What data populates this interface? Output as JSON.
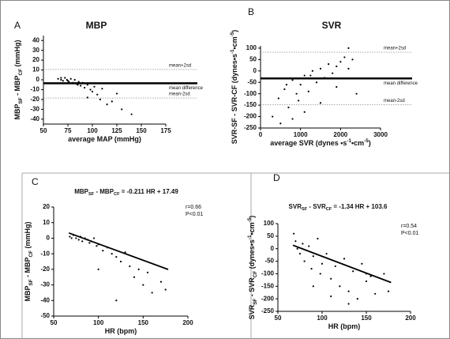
{
  "chart_data": [
    {
      "type": "scatter",
      "panel_label": "A",
      "title": [
        {
          "text": "MBP"
        }
      ],
      "xlabel": [
        {
          "text": "average MAP (mmHg)"
        }
      ],
      "ylabel": [
        {
          "text": "MBP"
        },
        {
          "text": "SF",
          "shift": "sub"
        },
        {
          "text": " - MBP"
        },
        {
          "text": "CF",
          "shift": "sub"
        },
        {
          "text": " (mmHg)"
        }
      ],
      "xlim": [
        50,
        175
      ],
      "xticks": [
        50,
        75,
        100,
        125,
        150,
        175
      ],
      "ylim": [
        -45,
        45
      ],
      "yticks": [
        -40,
        -30,
        -20,
        -10,
        0,
        10,
        20,
        30,
        40
      ],
      "color": "#000000",
      "x": [
        65,
        68,
        70,
        72,
        74,
        76,
        78,
        80,
        82,
        84,
        86,
        88,
        90,
        92,
        95,
        98,
        100,
        102,
        105,
        108,
        110,
        115,
        120,
        125,
        130,
        140,
        68,
        75,
        85,
        95
      ],
      "values": [
        1,
        0,
        -1,
        2,
        0,
        -2,
        1,
        -3,
        0,
        -4,
        -2,
        -6,
        -3,
        -8,
        -5,
        -10,
        -12,
        -7,
        -15,
        -20,
        -9,
        -25,
        -22,
        -14,
        -30,
        -35,
        2,
        -1,
        -5,
        -18
      ],
      "hlines": [
        {
          "value": 10.5,
          "label": "mean+2sd",
          "style": "dashed"
        },
        {
          "value": -3.5,
          "label": "mean difference",
          "style": "bold"
        },
        {
          "value": -18.5,
          "label": "mean-2sd",
          "style": "dashed"
        }
      ]
    },
    {
      "type": "scatter",
      "panel_label": "B",
      "title": [
        {
          "text": "SVR"
        }
      ],
      "xlabel": [
        {
          "text": "average SVR (dynes •s"
        },
        {
          "text": "-1",
          "shift": "sup"
        },
        {
          "text": "•cm"
        },
        {
          "text": "-5",
          "shift": "sup"
        },
        {
          "text": ")"
        }
      ],
      "ylabel": [
        {
          "text": "SVR-SF - SVR-CF (dynes•s"
        },
        {
          "text": "-1",
          "shift": "sup"
        },
        {
          "text": "•cm"
        },
        {
          "text": "-5",
          "shift": "sup"
        },
        {
          "text": ")"
        }
      ],
      "xlim": [
        0,
        3000
      ],
      "xticks": [
        0,
        1000,
        2000,
        3000
      ],
      "ylim": [
        -250,
        110
      ],
      "yticks": [
        -250,
        -200,
        -150,
        -100,
        -50,
        0,
        50,
        100
      ],
      "color": "#000000",
      "x": [
        300,
        450,
        600,
        700,
        800,
        900,
        1000,
        1100,
        1200,
        1300,
        1400,
        1500,
        1600,
        1700,
        1800,
        1900,
        2000,
        2100,
        2200,
        2300,
        2400,
        500,
        800,
        1100,
        1500,
        1900,
        2200,
        650,
        950,
        1250
      ],
      "values": [
        -200,
        -120,
        -80,
        -160,
        -40,
        -100,
        -60,
        -20,
        -90,
        0,
        -50,
        10,
        -30,
        30,
        -10,
        20,
        40,
        60,
        100,
        50,
        -100,
        -230,
        -210,
        -180,
        -140,
        -70,
        10,
        -60,
        -130,
        -20
      ],
      "hlines": [
        {
          "value": 82,
          "label": "mean+2sd",
          "style": "dashed"
        },
        {
          "value": -33,
          "label": "mean difference",
          "style": "bold"
        },
        {
          "value": -148,
          "label": "mean-2sd",
          "style": "dashed"
        }
      ]
    },
    {
      "type": "scatter",
      "panel_label": "C",
      "title": [
        {
          "text": "MBP"
        },
        {
          "text": "SF",
          "shift": "sub"
        },
        {
          "text": " - MBP"
        },
        {
          "text": "CF",
          "shift": "sub"
        },
        {
          "text": " = -0.211 HR + 17.49"
        }
      ],
      "xlabel": [
        {
          "text": "HR (bpm)"
        }
      ],
      "ylabel": [
        {
          "text": "MBP"
        },
        {
          "text": "SF",
          "shift": "sub"
        },
        {
          "text": " - MBP"
        },
        {
          "text": "CF",
          "shift": "sub"
        },
        {
          "text": " (mmHg)"
        }
      ],
      "annotations": [
        "r=0.66",
        "P<0.01"
      ],
      "xlim": [
        50,
        200
      ],
      "xticks": [
        50,
        100,
        150,
        200
      ],
      "ylim": [
        -50,
        20
      ],
      "yticks": [
        -50,
        -40,
        -30,
        -20,
        -10,
        0,
        10,
        20
      ],
      "color": "#000000",
      "x": [
        68,
        70,
        72,
        75,
        78,
        80,
        82,
        85,
        88,
        90,
        92,
        95,
        98,
        100,
        105,
        110,
        115,
        120,
        125,
        130,
        135,
        140,
        145,
        150,
        155,
        160,
        170,
        175,
        100,
        120
      ],
      "values": [
        1,
        0,
        2,
        0,
        -1,
        1,
        -2,
        0,
        -1,
        -3,
        -2,
        0,
        -5,
        -4,
        -8,
        -6,
        -10,
        -12,
        -15,
        -9,
        -18,
        -25,
        -20,
        -30,
        -22,
        -35,
        -28,
        -33,
        -20,
        -40
      ],
      "fit": {
        "x": [
          67,
          178
        ],
        "values": [
          3.35,
          -20.07
        ]
      }
    },
    {
      "type": "scatter",
      "panel_label": "D",
      "title": [
        {
          "text": "SVR"
        },
        {
          "text": "SF",
          "shift": "sub"
        },
        {
          "text": " - SVR"
        },
        {
          "text": "CF",
          "shift": "sub"
        },
        {
          "text": " = -1.34 HR + 103.6"
        }
      ],
      "xlabel": [
        {
          "text": "HR (bpm)"
        }
      ],
      "ylabel": [
        {
          "text": "SVR"
        },
        {
          "text": "SF",
          "shift": "sub"
        },
        {
          "text": " - SVR"
        },
        {
          "text": "CF",
          "shift": "sub"
        },
        {
          "text": " (dynes•s"
        },
        {
          "text": "-1",
          "shift": "sup"
        },
        {
          "text": "•cm"
        },
        {
          "text": "-5",
          "shift": "sup"
        },
        {
          "text": ")"
        }
      ],
      "annotations": [
        "r=0.54",
        "P<0.01"
      ],
      "xlim": [
        50,
        200
      ],
      "xticks": [
        50,
        100,
        150,
        200
      ],
      "ylim": [
        -250,
        100
      ],
      "yticks": [
        -250,
        -200,
        -150,
        -100,
        -50,
        0,
        50,
        100
      ],
      "color": "#000000",
      "x": [
        68,
        70,
        72,
        75,
        78,
        80,
        85,
        88,
        90,
        95,
        98,
        100,
        105,
        110,
        115,
        120,
        125,
        130,
        135,
        140,
        145,
        150,
        155,
        160,
        170,
        175,
        90,
        110,
        130,
        150
      ],
      "values": [
        60,
        30,
        0,
        -20,
        20,
        -50,
        10,
        -80,
        -30,
        40,
        -100,
        -60,
        -20,
        -120,
        -70,
        -150,
        -40,
        -170,
        -90,
        -200,
        -60,
        -130,
        -110,
        -180,
        -100,
        -170,
        -150,
        -190,
        -220,
        -100
      ],
      "fit": {
        "x": [
          67,
          178
        ],
        "values": [
          13.8,
          -134.9
        ]
      }
    }
  ]
}
